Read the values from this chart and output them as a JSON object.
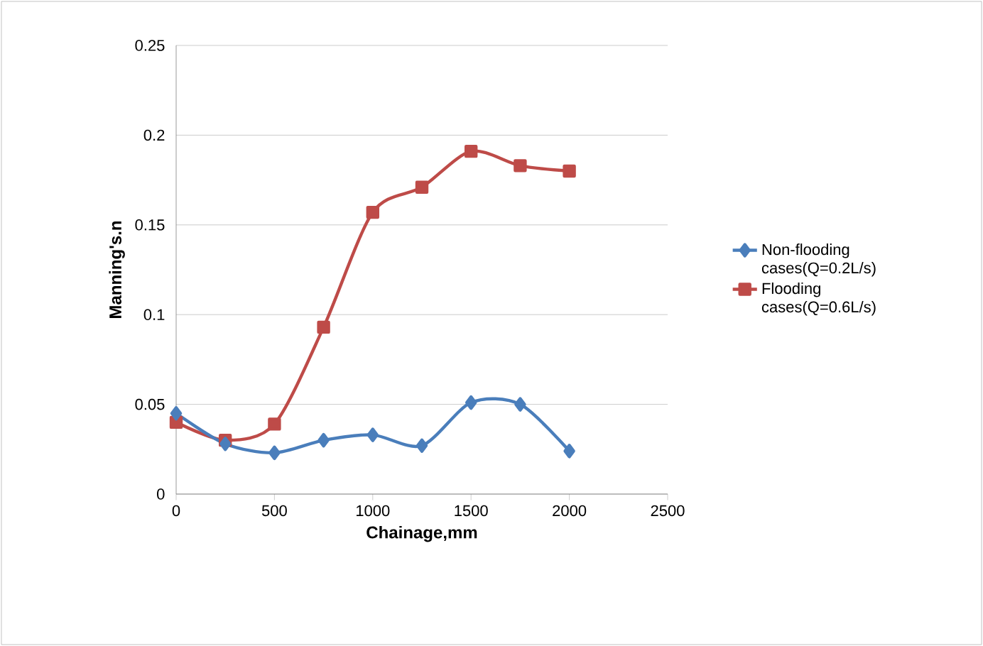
{
  "chart_data": {
    "type": "line",
    "xlabel": "Chainage,mm",
    "ylabel": "Manning's.n",
    "xlim": [
      0,
      2500
    ],
    "xticks": [
      0,
      500,
      1000,
      1500,
      2000,
      2500
    ],
    "ylim": [
      0,
      0.25
    ],
    "yticks": [
      0,
      0.05,
      0.1,
      0.15,
      0.2,
      0.25
    ],
    "grid": "y",
    "legend": "right",
    "x": [
      0,
      250,
      500,
      750,
      1000,
      1250,
      1500,
      1750,
      2000
    ],
    "series": [
      {
        "name": "Non-flooding cases(Q=0.2L/s)",
        "color": "#4a7ebb",
        "marker": "diamond",
        "values": [
          0.045,
          0.028,
          0.023,
          0.03,
          0.033,
          0.027,
          0.051,
          0.05,
          0.024
        ]
      },
      {
        "name": "Flooding cases(Q=0.6L/s)",
        "color": "#be4b48",
        "marker": "square",
        "values": [
          0.04,
          0.03,
          0.039,
          0.093,
          0.157,
          0.171,
          0.191,
          0.183,
          0.18
        ]
      }
    ]
  }
}
